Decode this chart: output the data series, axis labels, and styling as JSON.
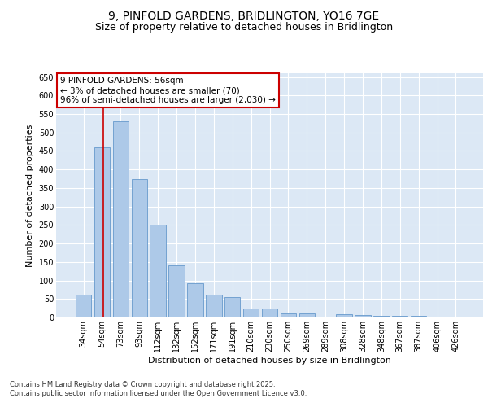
{
  "title": "9, PINFOLD GARDENS, BRIDLINGTON, YO16 7GE",
  "subtitle": "Size of property relative to detached houses in Bridlington",
  "xlabel": "Distribution of detached houses by size in Bridlington",
  "ylabel": "Number of detached properties",
  "categories": [
    "34sqm",
    "54sqm",
    "73sqm",
    "93sqm",
    "112sqm",
    "132sqm",
    "152sqm",
    "171sqm",
    "191sqm",
    "210sqm",
    "230sqm",
    "250sqm",
    "269sqm",
    "289sqm",
    "308sqm",
    "328sqm",
    "348sqm",
    "367sqm",
    "387sqm",
    "406sqm",
    "426sqm"
  ],
  "values": [
    62,
    460,
    530,
    375,
    250,
    140,
    93,
    62,
    55,
    25,
    25,
    10,
    10,
    0,
    8,
    7,
    4,
    4,
    5,
    3,
    3
  ],
  "bar_color": "#adc9e8",
  "bar_edge_color": "#6699cc",
  "vline_color": "#cc0000",
  "vline_x": 1.5,
  "annotation_text": "9 PINFOLD GARDENS: 56sqm\n← 3% of detached houses are smaller (70)\n96% of semi-detached houses are larger (2,030) →",
  "annotation_box_facecolor": "#ffffff",
  "annotation_box_edgecolor": "#cc0000",
  "ylim": [
    0,
    660
  ],
  "yticks": [
    0,
    50,
    100,
    150,
    200,
    250,
    300,
    350,
    400,
    450,
    500,
    550,
    600,
    650
  ],
  "background_color": "#dce8f5",
  "footer_line1": "Contains HM Land Registry data © Crown copyright and database right 2025.",
  "footer_line2": "Contains public sector information licensed under the Open Government Licence v3.0.",
  "title_fontsize": 10,
  "subtitle_fontsize": 9,
  "xlabel_fontsize": 8,
  "ylabel_fontsize": 8,
  "tick_fontsize": 7,
  "annotation_fontsize": 7.5,
  "footer_fontsize": 6
}
